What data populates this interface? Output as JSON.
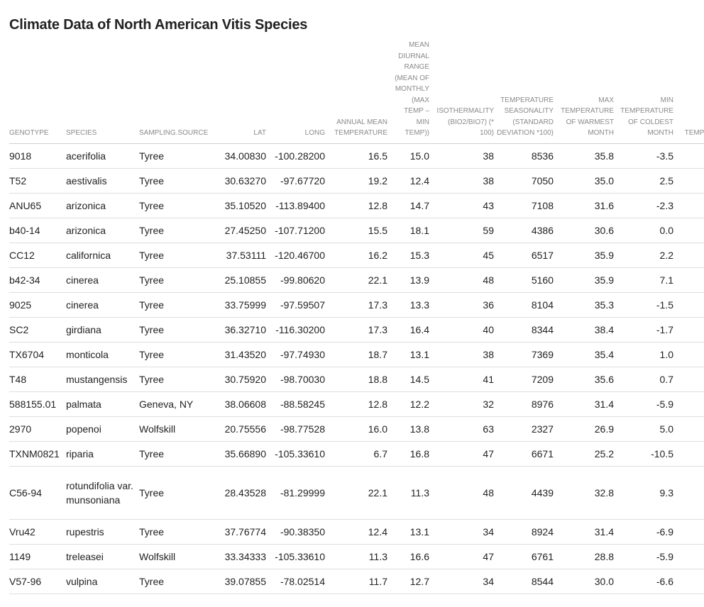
{
  "title": "Climate Data of North American Vitis Species",
  "columns": [
    {
      "label": "GENOTYPE",
      "align": "left"
    },
    {
      "label": "SPECIES",
      "align": "left"
    },
    {
      "label": "SAMPLING.SOURCE",
      "align": "left"
    },
    {
      "label": "LAT",
      "align": "num"
    },
    {
      "label": "LONG",
      "align": "num"
    },
    {
      "label": "ANNUAL MEAN TEMPERATURE",
      "align": "num"
    },
    {
      "label": "MEAN DIURNAL RANGE (MEAN OF MONTHLY (MAX TEMP – MIN TEMP))",
      "align": "num"
    },
    {
      "label": "ISOTHERMALITY (BIO2/BIO7) (* 100)",
      "align": "num"
    },
    {
      "label": "TEMPERATURE SEASONALITY (STANDARD DEVIATION *100)",
      "align": "num"
    },
    {
      "label": "MAX TEMPERATURE OF WARMEST MONTH",
      "align": "num"
    },
    {
      "label": "MIN TEMPERATURE OF COLDEST MONTH",
      "align": "num"
    },
    {
      "label": "TEMPER A RANGE",
      "align": "num"
    }
  ],
  "rows": [
    [
      "9018",
      "acerifolia",
      "Tyree",
      "34.00830",
      "-100.28200",
      "16.5",
      "15.0",
      "38",
      "8536",
      "35.8",
      "-3.5",
      ""
    ],
    [
      "T52",
      "aestivalis",
      "Tyree",
      "30.63270",
      "-97.67720",
      "19.2",
      "12.4",
      "38",
      "7050",
      "35.0",
      "2.5",
      ""
    ],
    [
      "ANU65",
      "arizonica",
      "Tyree",
      "35.10520",
      "-113.89400",
      "12.8",
      "14.7",
      "43",
      "7108",
      "31.6",
      "-2.3",
      ""
    ],
    [
      "b40-14",
      "arizonica",
      "Tyree",
      "27.45250",
      "-107.71200",
      "15.5",
      "18.1",
      "59",
      "4386",
      "30.6",
      "0.0",
      ""
    ],
    [
      "CC12",
      "californica",
      "Tyree",
      "37.53111",
      "-120.46700",
      "16.2",
      "15.3",
      "45",
      "6517",
      "35.9",
      "2.2",
      ""
    ],
    [
      "b42-34",
      "cinerea",
      "Tyree",
      "25.10855",
      "-99.80620",
      "22.1",
      "13.9",
      "48",
      "5160",
      "35.9",
      "7.1",
      ""
    ],
    [
      "9025",
      "cinerea",
      "Tyree",
      "33.75999",
      "-97.59507",
      "17.3",
      "13.3",
      "36",
      "8104",
      "35.3",
      "-1.5",
      ""
    ],
    [
      "SC2",
      "girdiana",
      "Tyree",
      "36.32710",
      "-116.30200",
      "17.3",
      "16.4",
      "40",
      "8344",
      "38.4",
      "-1.7",
      ""
    ],
    [
      "TX6704",
      "monticola",
      "Tyree",
      "31.43520",
      "-97.74930",
      "18.7",
      "13.1",
      "38",
      "7369",
      "35.4",
      "1.0",
      ""
    ],
    [
      "T48",
      "mustangensis",
      "Tyree",
      "30.75920",
      "-98.70030",
      "18.8",
      "14.5",
      "41",
      "7209",
      "35.6",
      "0.7",
      ""
    ],
    [
      "588155.01",
      "palmata",
      "Geneva, NY",
      "38.06608",
      "-88.58245",
      "12.8",
      "12.2",
      "32",
      "8976",
      "31.4",
      "-5.9",
      ""
    ],
    [
      "2970",
      "popenoi",
      "Wolfskill",
      "20.75556",
      "-98.77528",
      "16.0",
      "13.8",
      "63",
      "2327",
      "26.9",
      "5.0",
      ""
    ],
    [
      "TXNM0821",
      "riparia",
      "Tyree",
      "35.66890",
      "-105.33610",
      "6.7",
      "16.8",
      "47",
      "6671",
      "25.2",
      "-10.5",
      ""
    ],
    [
      "C56-94",
      "rotundifolia var. munsoniana",
      "Tyree",
      "28.43528",
      "-81.29999",
      "22.1",
      "11.3",
      "48",
      "4439",
      "32.8",
      "9.3",
      ""
    ],
    [
      "Vru42",
      "rupestris",
      "Tyree",
      "37.76774",
      "-90.38350",
      "12.4",
      "13.1",
      "34",
      "8924",
      "31.4",
      "-6.9",
      ""
    ],
    [
      "1149",
      "treleasei",
      "Wolfskill",
      "33.34333",
      "-105.33610",
      "11.3",
      "16.6",
      "47",
      "6761",
      "28.8",
      "-5.9",
      ""
    ],
    [
      "V57-96",
      "vulpina",
      "Tyree",
      "39.07855",
      "-78.02514",
      "11.7",
      "12.7",
      "34",
      "8544",
      "30.0",
      "-6.6",
      ""
    ]
  ]
}
